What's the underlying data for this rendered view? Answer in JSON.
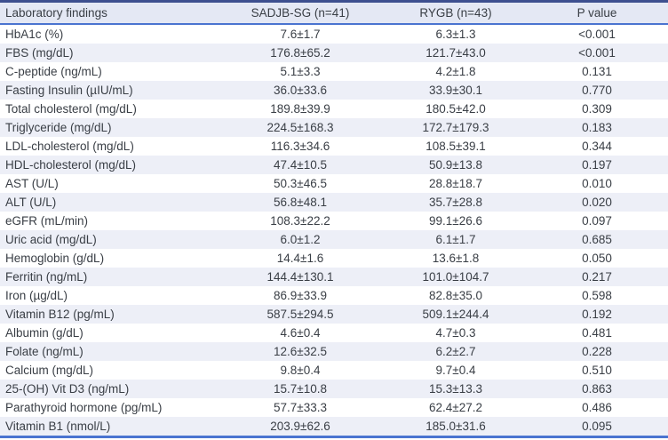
{
  "chart_data": {
    "type": "table",
    "columns": [
      "Laboratory findings",
      "SADJB-SG (n=41)",
      "RYGB (n=43)",
      "P value"
    ],
    "value_format": "mean±SD",
    "rows": [
      [
        "HbA1c (%)",
        "7.6±1.7",
        "6.3±1.3",
        "<0.001"
      ],
      [
        "FBS (mg/dL)",
        "176.8±65.2",
        "121.7±43.0",
        "<0.001"
      ],
      [
        "C-peptide (ng/mL)",
        "5.1±3.3",
        "4.2±1.8",
        "0.131"
      ],
      [
        "Fasting Insulin (µIU/mL)",
        "36.0±33.6",
        "33.9±30.1",
        "0.770"
      ],
      [
        "Total cholesterol (mg/dL)",
        "189.8±39.9",
        "180.5±42.0",
        "0.309"
      ],
      [
        "Triglyceride (mg/dL)",
        "224.5±168.3",
        "172.7±179.3",
        "0.183"
      ],
      [
        "LDL-cholesterol (mg/dL)",
        "116.3±34.6",
        "108.5±39.1",
        "0.344"
      ],
      [
        "HDL-cholesterol (mg/dL)",
        "47.4±10.5",
        "50.9±13.8",
        "0.197"
      ],
      [
        "AST (U/L)",
        "50.3±46.5",
        "28.8±18.7",
        "0.010"
      ],
      [
        "ALT (U/L)",
        "56.8±48.1",
        "35.7±28.8",
        "0.020"
      ],
      [
        "eGFR (mL/min)",
        "108.3±22.2",
        "99.1±26.6",
        "0.097"
      ],
      [
        "Uric acid (mg/dL)",
        "6.0±1.2",
        "6.1±1.7",
        "0.685"
      ],
      [
        "Hemoglobin (g/dL)",
        "14.4±1.6",
        "13.6±1.8",
        "0.050"
      ],
      [
        "Ferritin (ng/mL)",
        "144.4±130.1",
        "101.0±104.7",
        "0.217"
      ],
      [
        "Iron (µg/dL)",
        "86.9±33.9",
        "82.8±35.0",
        "0.598"
      ],
      [
        "Vitamin B12 (pg/mL)",
        "587.5±294.5",
        "509.1±244.4",
        "0.192"
      ],
      [
        "Albumin (g/dL)",
        "4.6±0.4",
        "4.7±0.3",
        "0.481"
      ],
      [
        "Folate (ng/mL)",
        "12.6±32.5",
        "6.2±2.7",
        "0.228"
      ],
      [
        "Calcium (mg/dL)",
        "9.8±0.4",
        "9.7±0.4",
        "0.510"
      ],
      [
        "25-(OH) Vit D3 (ng/mL)",
        "15.7±10.8",
        "15.3±13.3",
        "0.863"
      ],
      [
        "Parathyroid hormone (pg/mL)",
        "57.7±33.3",
        "62.4±27.2",
        "0.486"
      ],
      [
        "Vitamin B1 (nmol/L)",
        "203.9±62.6",
        "185.0±31.6",
        "0.095"
      ]
    ]
  },
  "colors": {
    "top_border": "#3d4f8f",
    "rule_blue": "#4a74d0",
    "header_bg": "#e4e8f4",
    "stripe_bg": "#edeff7",
    "text": "#393e45"
  }
}
